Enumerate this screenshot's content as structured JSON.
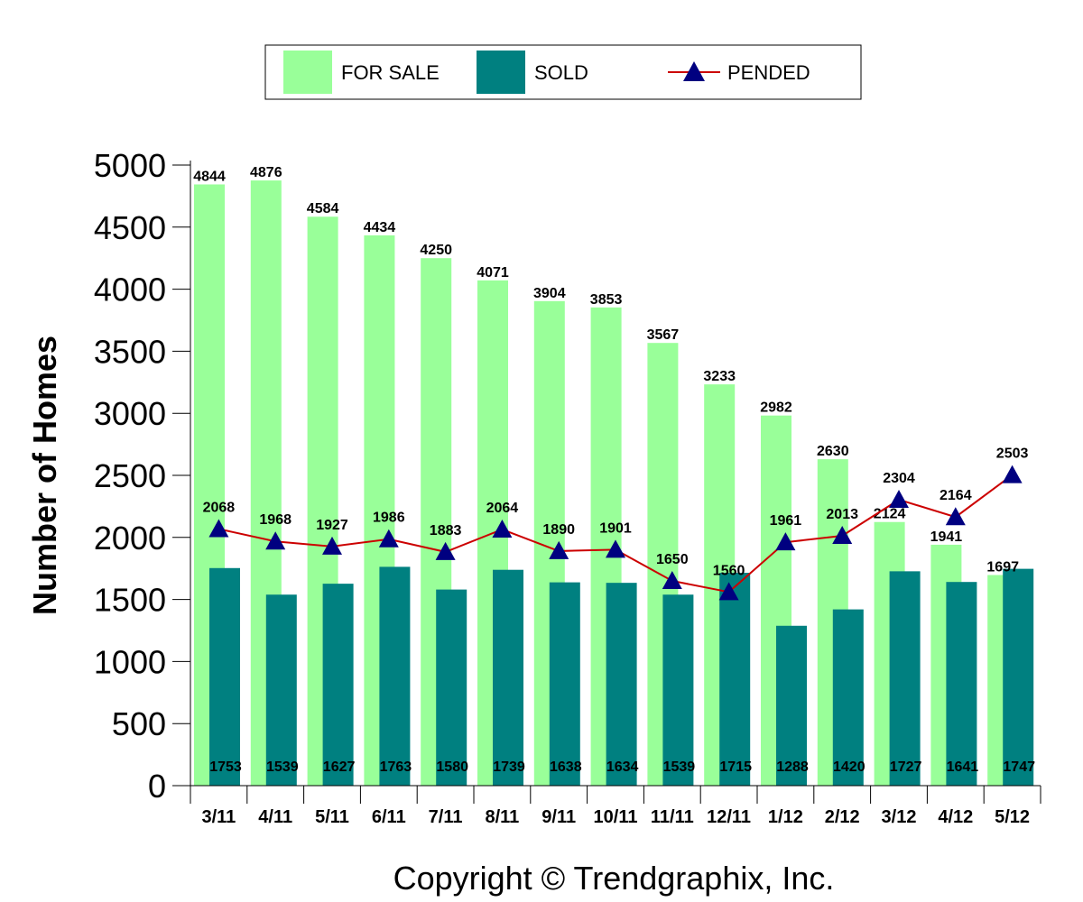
{
  "chart_data": {
    "type": "bar",
    "categories": [
      "3/11",
      "4/11",
      "5/11",
      "6/11",
      "7/11",
      "8/11",
      "9/11",
      "10/11",
      "11/11",
      "12/11",
      "1/12",
      "2/12",
      "3/12",
      "4/12",
      "5/12"
    ],
    "series": [
      {
        "name": "FOR SALE",
        "kind": "bar",
        "color": "#99FF99",
        "values": [
          4844,
          4876,
          4584,
          4434,
          4250,
          4071,
          3904,
          3853,
          3567,
          3233,
          2982,
          2630,
          2124,
          1941,
          1697
        ]
      },
      {
        "name": "SOLD",
        "kind": "bar",
        "color": "#008080",
        "values": [
          1753,
          1539,
          1627,
          1763,
          1580,
          1739,
          1638,
          1634,
          1539,
          1715,
          1288,
          1420,
          1727,
          1641,
          1747
        ]
      },
      {
        "name": "PENDED",
        "kind": "line",
        "color": "#CC0000",
        "marker_color": "#000080",
        "values": [
          2068,
          1968,
          1927,
          1986,
          1883,
          2064,
          1890,
          1901,
          1650,
          1560,
          1961,
          2013,
          2304,
          2164,
          2503
        ]
      }
    ],
    "ylabel": "Number of Homes",
    "xlabel": "",
    "ylim": [
      0,
      5000
    ],
    "yticks": [
      0,
      500,
      1000,
      1500,
      2000,
      2500,
      3000,
      3500,
      4000,
      4500,
      5000
    ],
    "legend_position": "top-center",
    "grid": false
  },
  "footer": {
    "copyright": "Copyright © Trendgraphix, Inc."
  }
}
